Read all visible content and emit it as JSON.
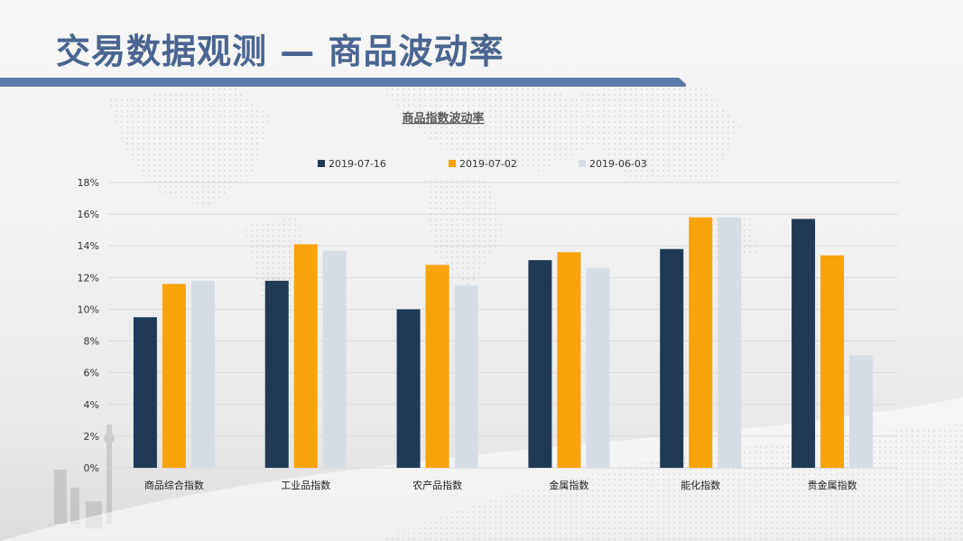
{
  "page": {
    "title": "交易数据观测 — 商品波动率"
  },
  "colors": {
    "title": "#4a6590",
    "accent_bar": "#5b7aa6",
    "series": [
      "#203a55",
      "#f9a30b",
      "#d7dde5"
    ],
    "grid": "#d9d9d9"
  },
  "chart_data": {
    "type": "bar",
    "title": "商品指数波动率",
    "xlabel": "",
    "ylabel": "",
    "categories": [
      "商品综合指数",
      "工业品指数",
      "农产品指数",
      "金属指数",
      "能化指数",
      "贵金属指数"
    ],
    "series": [
      {
        "name": "2019-07-16",
        "values": [
          9.5,
          11.8,
          10.0,
          13.1,
          13.8,
          15.7
        ]
      },
      {
        "name": "2019-07-02",
        "values": [
          11.6,
          14.1,
          12.8,
          13.6,
          15.8,
          13.4
        ]
      },
      {
        "name": "2019-06-03",
        "values": [
          11.8,
          13.7,
          11.5,
          12.6,
          15.8,
          7.1
        ]
      }
    ],
    "ylim": [
      0,
      18
    ],
    "yticks": [
      0,
      2,
      4,
      6,
      8,
      10,
      12,
      14,
      16,
      18
    ],
    "ytick_labels": [
      "0%",
      "2%",
      "4%",
      "6%",
      "8%",
      "10%",
      "12%",
      "14%",
      "16%",
      "18%"
    ],
    "grid": true,
    "legend_position": "top"
  }
}
